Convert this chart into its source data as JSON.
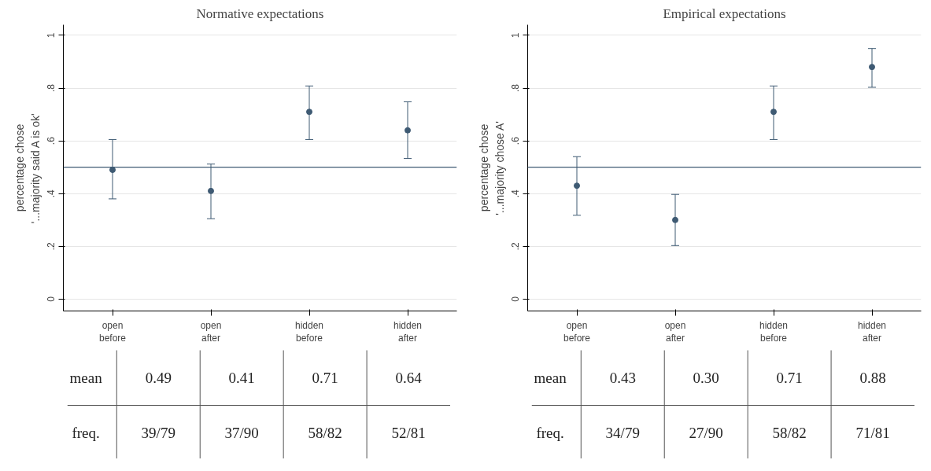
{
  "chart_data": [
    {
      "type": "scatter",
      "title": "Normative expectations",
      "ylabel": "percentage chose\n'...majority said A is ok'",
      "categories": [
        "open\nbefore",
        "open\nafter",
        "hidden\nbefore",
        "hidden\nafter"
      ],
      "series": [
        {
          "color": "#3e5a73",
          "values": [
            0.49,
            0.41,
            0.71,
            0.64
          ],
          "errors": [
            [
              0.38,
              0.605
            ],
            [
              0.305,
              0.512
            ],
            [
              0.605,
              0.808
            ],
            [
              0.533,
              0.748
            ]
          ],
          "value_labels": [
            "0.49",
            "0.41",
            "0.71",
            "0.64"
          ]
        }
      ],
      "ylim": [
        -0.045,
        1.04
      ],
      "yticks": [
        {
          "value": 0,
          "label": "0"
        },
        {
          "value": 0.2,
          "label": ".2"
        },
        {
          "value": 0.4,
          "label": ".4"
        },
        {
          "value": 0.6,
          "label": ".6"
        },
        {
          "value": 0.8,
          "label": ".8"
        },
        {
          "value": 1,
          "label": "1"
        }
      ],
      "grid": "y",
      "marker": "circle",
      "ref_lines": [
        {
          "axis": "y",
          "value": 0.5,
          "color": "#3e5a73"
        }
      ],
      "annotations": [
        "mean",
        "freq.",
        "39/79",
        "37/90",
        "58/82",
        "52/81"
      ]
    },
    {
      "type": "scatter",
      "title": "Empirical expectations",
      "ylabel": "percentage chose\n'...majority chose A'",
      "categories": [
        "open\nbefore",
        "open\nafter",
        "hidden\nbefore",
        "hidden\nafter"
      ],
      "series": [
        {
          "color": "#3e5a73",
          "values": [
            0.43,
            0.3,
            0.71,
            0.88
          ],
          "errors": [
            [
              0.318,
              0.54
            ],
            [
              0.203,
              0.397
            ],
            [
              0.605,
              0.808
            ],
            [
              0.803,
              0.95
            ]
          ],
          "value_labels": [
            "0.43",
            "0.30",
            "0.71",
            "0.88"
          ]
        }
      ],
      "ylim": [
        -0.045,
        1.04
      ],
      "yticks": [
        {
          "value": 0,
          "label": "0"
        },
        {
          "value": 0.2,
          "label": ".2"
        },
        {
          "value": 0.4,
          "label": ".4"
        },
        {
          "value": 0.6,
          "label": ".6"
        },
        {
          "value": 0.8,
          "label": ".8"
        },
        {
          "value": 1,
          "label": "1"
        }
      ],
      "grid": "y",
      "marker": "circle",
      "ref_lines": [
        {
          "axis": "y",
          "value": 0.5,
          "color": "#3e5a73"
        }
      ],
      "annotations": [
        "mean",
        "freq.",
        "34/79",
        "27/90",
        "58/82",
        "71/81"
      ]
    }
  ]
}
